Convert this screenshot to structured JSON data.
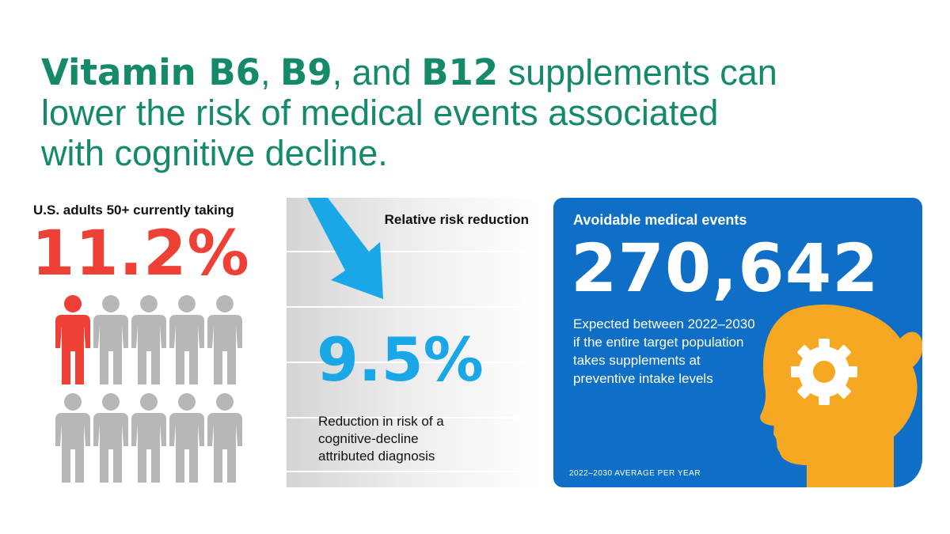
{
  "headline": {
    "part1_bold": "Vitamin B6",
    "part2": ", ",
    "part3_bold": "B9",
    "part4": ", and ",
    "part5_bold": "B12",
    "part6": " supplements can lower the risk of medical events associated with cognitive decline."
  },
  "left": {
    "label": "U.S. adults 50+ currently taking",
    "value": "11.2%",
    "share_highlighted": 0.112,
    "colors": {
      "highlight": "#ef4036",
      "base": "#b7b7b7"
    }
  },
  "middle": {
    "label": "Relative risk reduction",
    "value": "9.5%",
    "description": "Reduction in risk of a cognitive-decline attributed diagnosis",
    "arrow_color": "#1aa7e8"
  },
  "right": {
    "label": "Avoidable medical events",
    "value": "270,642",
    "description": "Expected between 2022–2030 if the entire target population takes supplements at preventive intake levels",
    "footnote": "2022–2030 AVERAGE PER YEAR",
    "colors": {
      "panel": "#0f6fc6",
      "head": "#f7a823"
    },
    "icons": [
      "head-silhouette-icon",
      "gear-icon"
    ]
  }
}
